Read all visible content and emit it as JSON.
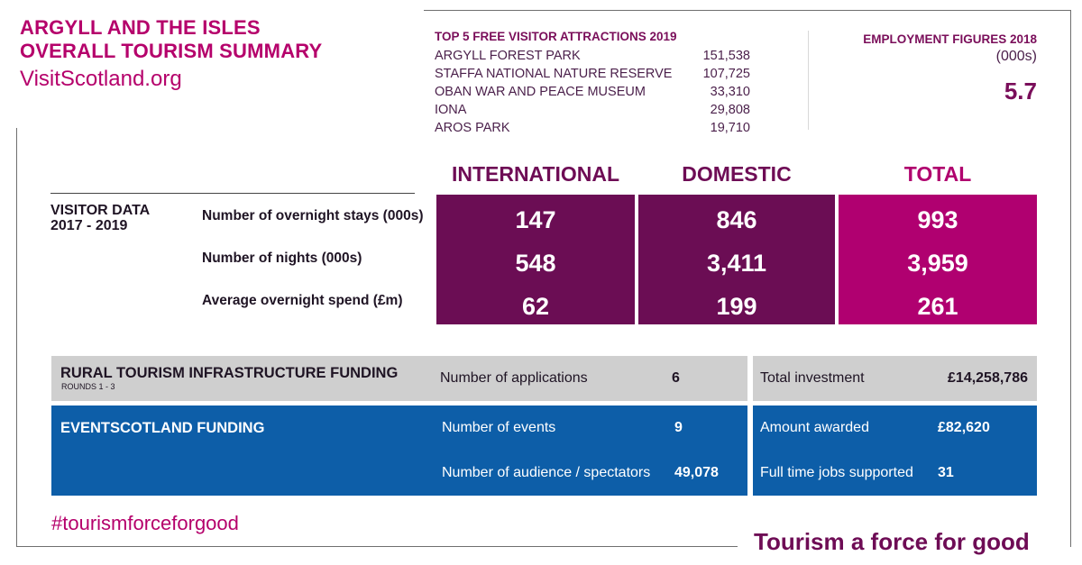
{
  "header": {
    "title_line1": "ARGYLL AND THE ISLES",
    "title_line2": "OVERALL TOURISM SUMMARY",
    "site": "VisitScotland.org"
  },
  "attractions": {
    "title": "TOP 5 FREE VISITOR ATTRACTIONS 2019",
    "items": [
      {
        "name": "ARGYLL FOREST PARK",
        "value": "151,538"
      },
      {
        "name": "STAFFA NATIONAL NATURE RESERVE",
        "value": "107,725"
      },
      {
        "name": "OBAN WAR AND PEACE MUSEUM",
        "value": "33,310"
      },
      {
        "name": "IONA",
        "value": "29,808"
      },
      {
        "name": "AROS PARK",
        "value": "19,710"
      }
    ]
  },
  "employment": {
    "title": "EMPLOYMENT FIGURES 2018",
    "unit": "(000s)",
    "value": "5.7"
  },
  "visitor_data": {
    "title_line1": "VISITOR DATA",
    "title_line2": "2017 - 2019",
    "columns": [
      "INTERNATIONAL",
      "DOMESTIC",
      "TOTAL"
    ],
    "rows": [
      {
        "label": "Number of overnight stays (000s)",
        "values": [
          "147",
          "846",
          "993"
        ]
      },
      {
        "label": "Number of nights (000s)",
        "values": [
          "548",
          "3,411",
          "3,959"
        ]
      },
      {
        "label": "Average overnight spend (£m)",
        "values": [
          "62",
          "199",
          "261"
        ]
      }
    ],
    "colors": {
      "domestic_international": "#6b0d54",
      "total": "#b00070"
    }
  },
  "rural_funding": {
    "title": "RURAL TOURISM INFRASTRUCTURE FUNDING",
    "subtitle": "ROUNDS 1 - 3",
    "applications_label": "Number of applications",
    "applications_value": "6",
    "investment_label": "Total investment",
    "investment_value": "£14,258,786"
  },
  "events_funding": {
    "title": "EVENTSCOTLAND FUNDING",
    "events_label": "Number of events",
    "events_value": "9",
    "audience_label": "Number of audience / spectators",
    "audience_value": "49,078",
    "awarded_label": "Amount awarded",
    "awarded_value": "£82,620",
    "jobs_label": "Full time jobs supported",
    "jobs_value": "31"
  },
  "footer": {
    "hashtag": "#tourismforceforgood",
    "tagline": "Tourism a force for good"
  }
}
